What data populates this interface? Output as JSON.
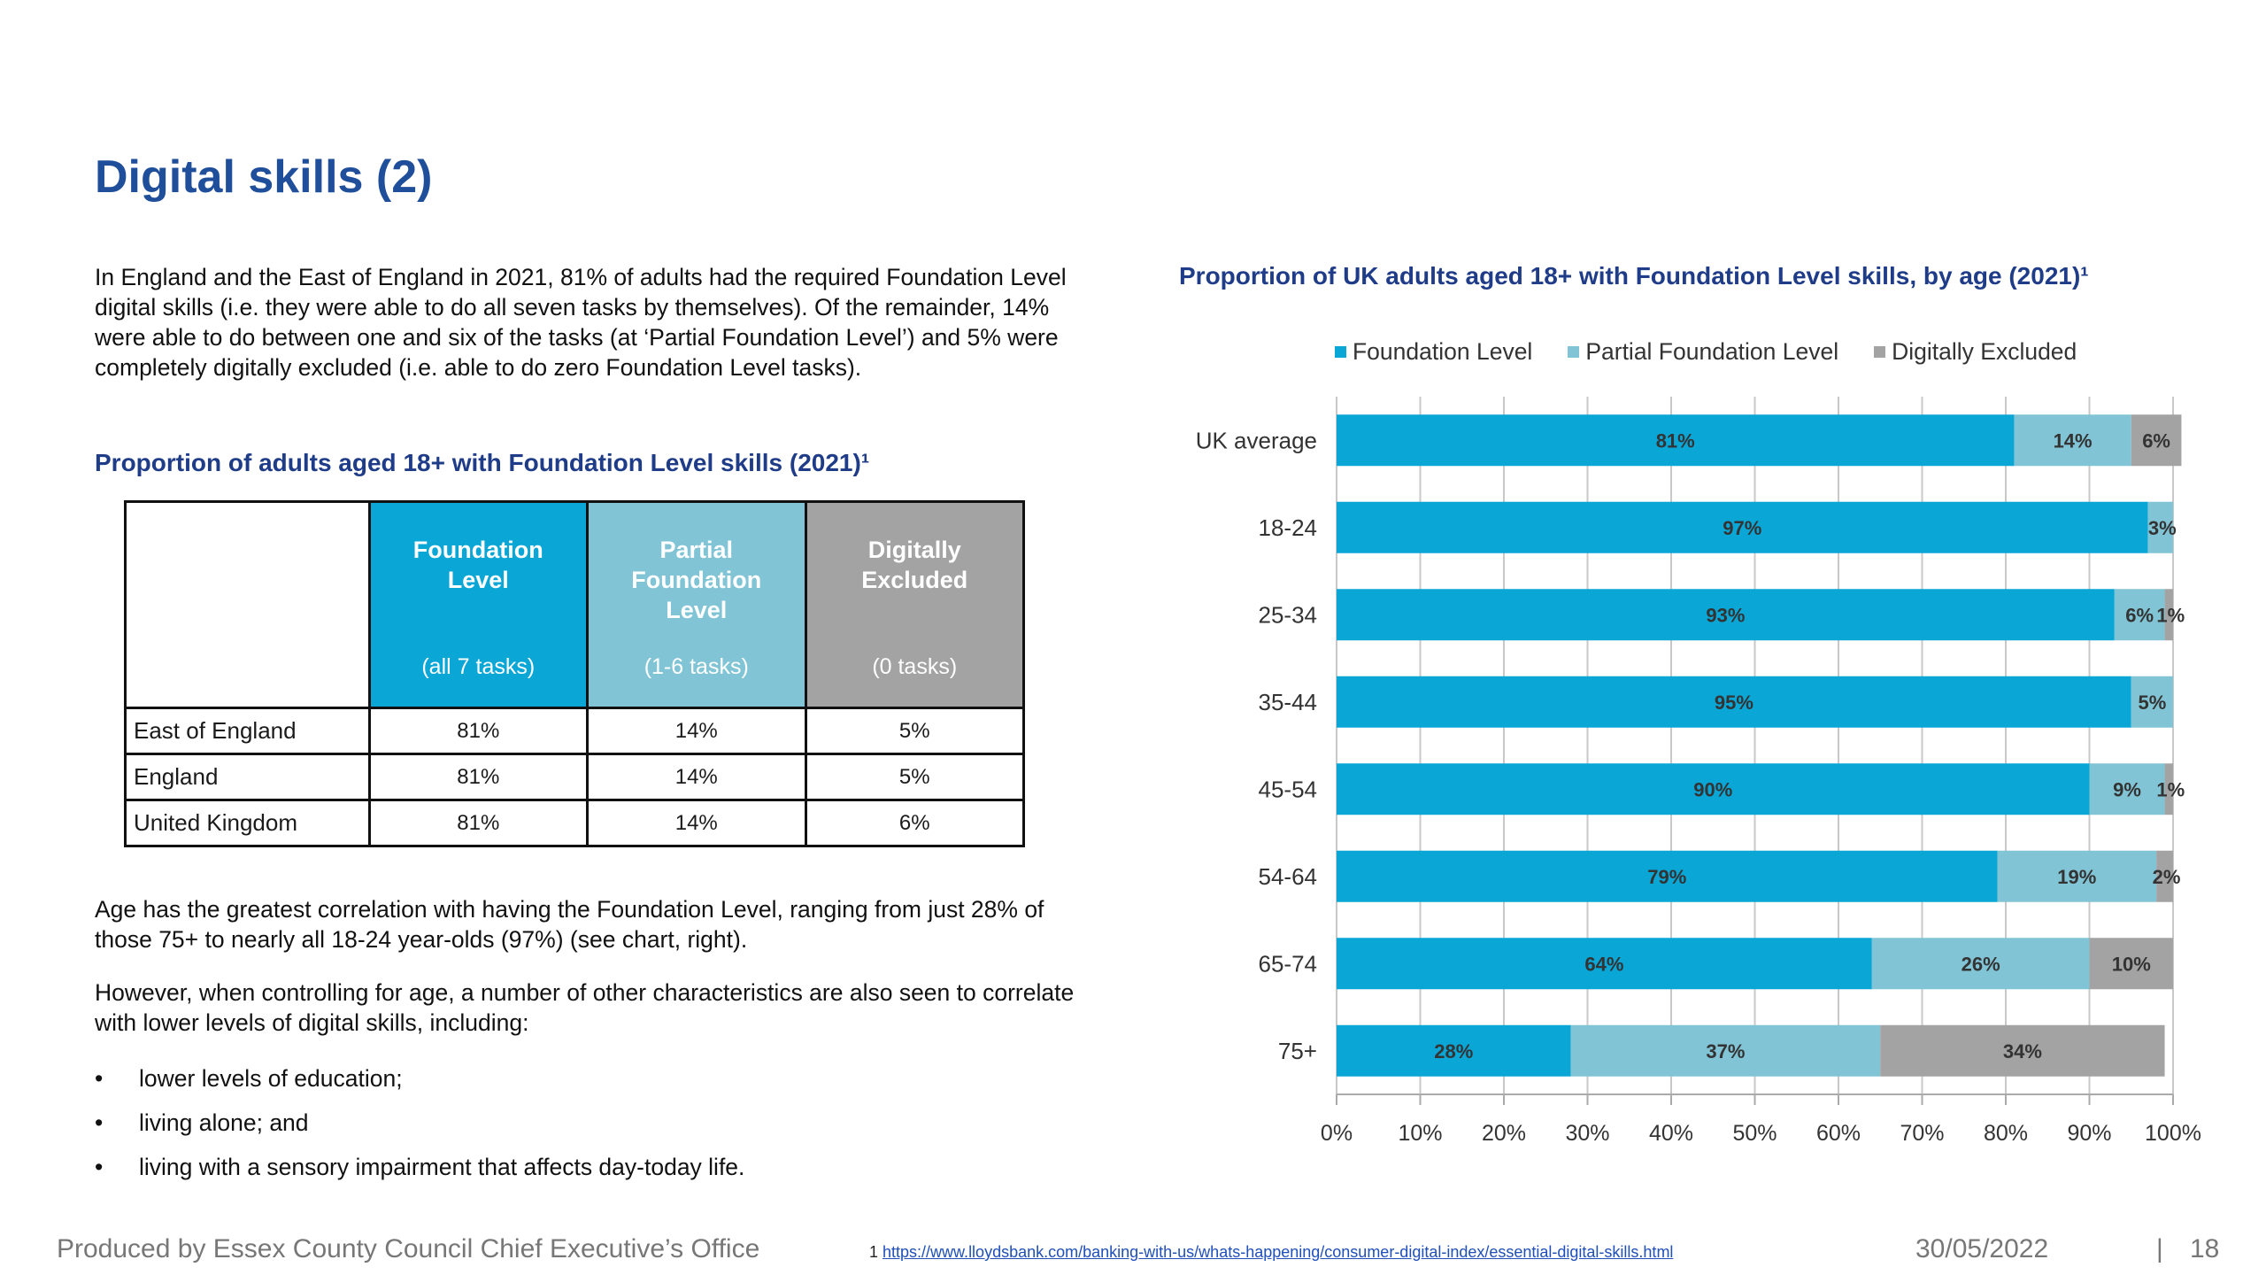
{
  "page": {
    "title": "Digital skills (2)",
    "intro": "In England and the East of England in 2021, 81% of adults had the required Foundation Level digital skills (i.e. they were able to do all seven tasks by themselves). Of the remainder, 14% were able to do between one and six of the tasks (at ‘Partial Foundation Level’) and 5% were completely digitally excluded (i.e. able to do zero Foundation Level tasks).",
    "table_heading": "Proportion of adults aged 18+ with Foundation Level skills (2021)¹",
    "para1": "Age has the greatest correlation with having the Foundation Level, ranging from just 28% of those 75+ to nearly all 18-24 year-olds (97%) (see chart, right).",
    "para2": "However, when controlling for age, a number of other characteristics are also seen to correlate with lower levels of digital skills, including:",
    "bullets": [
      "lower levels of education;",
      "living alone; and",
      "living with a sensory impairment that affects day-today life."
    ],
    "bullet_char": "•"
  },
  "table": {
    "columns": [
      {
        "label": "Foundation Level",
        "sub": "(all 7 tasks)"
      },
      {
        "label": "Partial Foundation Level",
        "sub": "(1-6 tasks)"
      },
      {
        "label": "Digitally Excluded",
        "sub": "(0 tasks)"
      }
    ],
    "rows": [
      {
        "label": "East of England",
        "values": [
          "81%",
          "14%",
          "5%"
        ]
      },
      {
        "label": "England",
        "values": [
          "81%",
          "14%",
          "5%"
        ]
      },
      {
        "label": "United Kingdom",
        "values": [
          "81%",
          "14%",
          "6%"
        ]
      }
    ]
  },
  "chart_data": {
    "type": "bar",
    "orientation": "horizontal",
    "stacked": true,
    "title": "Proportion of UK adults aged 18+ with Foundation Level skills, by age (2021)¹",
    "categories": [
      "UK average",
      "18-24",
      "25-34",
      "35-44",
      "45-54",
      "54-64",
      "65-74",
      "75+"
    ],
    "series": [
      {
        "name": "Foundation Level",
        "color": "#0aa6d6",
        "values": [
          81,
          97,
          93,
          95,
          90,
          79,
          64,
          28
        ],
        "labels": [
          "81%",
          "97%",
          "93%",
          "95%",
          "90%",
          "79%",
          "64%",
          "28%"
        ]
      },
      {
        "name": "Partial Foundation Level",
        "color": "#80c4d5",
        "values": [
          14,
          3,
          6,
          5,
          9,
          19,
          26,
          37
        ],
        "labels": [
          "14%",
          "3%",
          "6%",
          "5%",
          "9%",
          "19%",
          "26%",
          "37%"
        ]
      },
      {
        "name": "Digitally Excluded",
        "color": "#a3a3a3",
        "values": [
          6,
          0,
          1,
          0,
          1,
          2,
          10,
          34
        ],
        "labels": [
          "6%",
          "",
          "1%",
          "",
          "1%",
          "2%",
          "10%",
          "34%"
        ]
      }
    ],
    "xlim": [
      0,
      100
    ],
    "xticks": [
      "0%",
      "10%",
      "20%",
      "30%",
      "40%",
      "50%",
      "60%",
      "70%",
      "80%",
      "90%",
      "100%"
    ],
    "grid": true,
    "legend": "top",
    "label_color": "#333333"
  },
  "footer": {
    "producer": "Produced by Essex County Council Chief Executive’s Office",
    "footnote_number": "1",
    "footnote_link": "https://www.lloydsbank.com/banking-with-us/whats-happening/consumer-digital-index/essential-digital-skills.html",
    "date": "30/05/2022",
    "separator": "|",
    "page_number": "18"
  }
}
